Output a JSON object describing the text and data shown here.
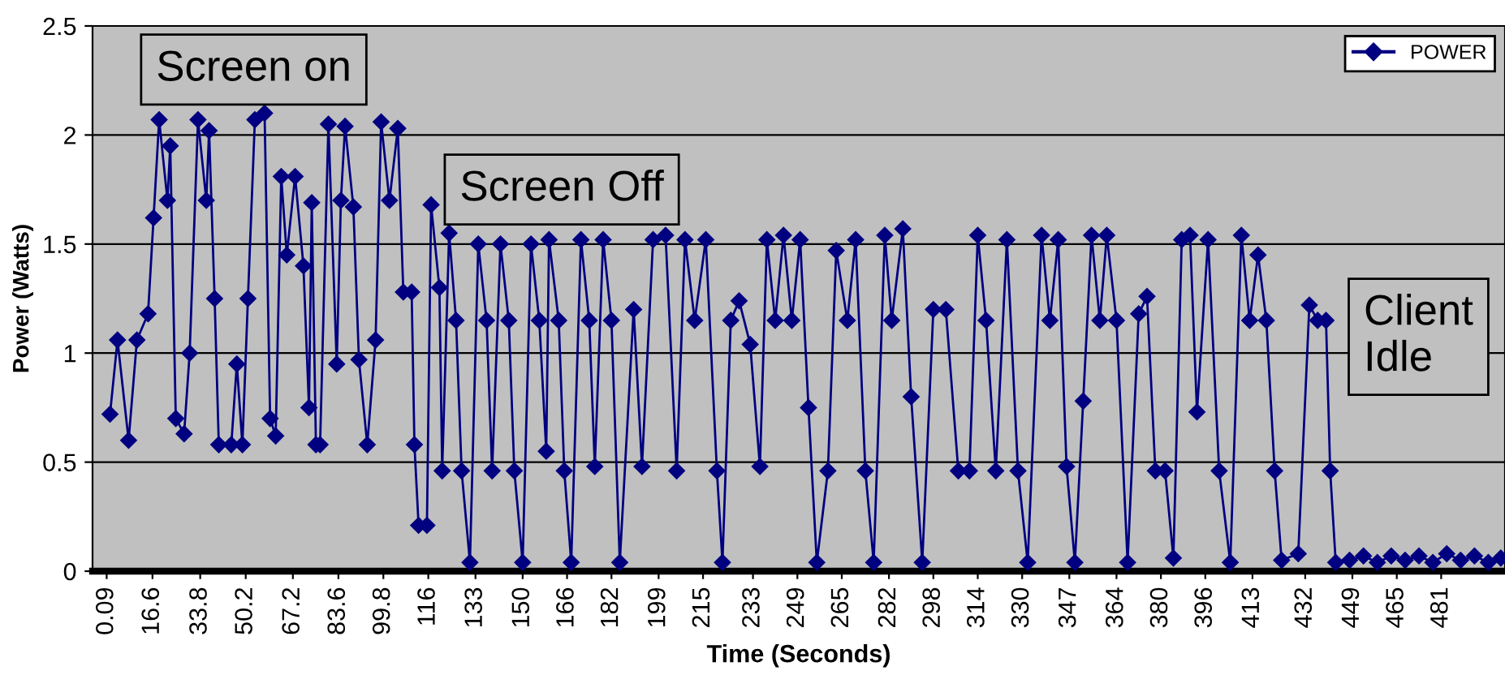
{
  "chart_data": {
    "type": "line",
    "xlabel": "Time (Seconds)",
    "ylabel": "Power (Watts)",
    "annotations": [
      "Screen on",
      "Screen Off",
      "Client\nIdle"
    ],
    "xlim": [
      -5,
      504
    ],
    "xticks": [
      0.09,
      16.6,
      33.8,
      50.2,
      67.2,
      83.6,
      99.8,
      116,
      133,
      150,
      166,
      182,
      199,
      215,
      233,
      249,
      265,
      282,
      298,
      314,
      330,
      347,
      364,
      380,
      396,
      413,
      432,
      449,
      465,
      481
    ],
    "ylim": [
      0,
      2.5
    ],
    "yticks": [
      0,
      0.5,
      1,
      1.5,
      2,
      2.5
    ],
    "grid": "y",
    "legend": "top right",
    "marker": "diamond",
    "line_style": "solid",
    "series": [
      {
        "name": "POWER",
        "color": "#000080",
        "x": [
          1.3,
          4,
          8,
          11,
          15,
          17,
          19,
          22,
          23,
          25,
          28,
          30,
          33,
          36,
          37,
          39,
          40.5,
          45,
          47,
          49,
          51,
          53.5,
          57,
          59,
          61,
          63,
          65,
          68,
          71,
          73,
          74,
          75.5,
          77,
          80,
          83,
          84.5,
          86,
          89,
          91,
          94,
          97,
          99,
          102,
          105,
          107,
          110,
          111,
          112.5,
          115.5,
          117,
          120,
          121,
          123.5,
          126,
          128,
          131,
          134,
          137,
          139,
          142,
          145,
          147,
          150,
          153,
          156,
          158.5,
          159.5,
          163,
          165,
          167.5,
          171,
          174,
          176,
          179,
          182,
          185,
          190,
          193,
          197,
          201.5,
          205.5,
          208.5,
          212,
          216,
          220,
          222,
          225,
          228,
          232,
          235.5,
          238,
          241,
          244,
          247,
          250,
          253,
          256,
          260,
          263,
          267,
          270,
          273.5,
          276.5,
          280.5,
          283,
          287,
          290,
          294,
          298,
          302.5,
          307,
          311,
          314,
          317,
          320.5,
          324.5,
          328.5,
          332,
          337,
          340,
          343,
          346,
          349,
          352,
          355,
          358,
          360.5,
          364,
          368,
          372,
          375,
          378,
          381.5,
          384.5,
          387.5,
          390.5,
          393,
          397,
          401,
          405,
          409,
          412,
          415,
          418,
          421,
          423.5,
          429.5,
          433.5,
          436.5,
          439.5,
          441,
          443,
          448,
          453,
          458,
          463,
          468,
          473,
          478,
          483,
          488,
          493,
          498,
          502.5
        ],
        "values": [
          0.72,
          1.06,
          0.6,
          1.06,
          1.18,
          1.62,
          2.07,
          1.7,
          1.95,
          0.7,
          0.63,
          1.0,
          2.07,
          1.7,
          2.02,
          1.25,
          0.58,
          0.58,
          0.95,
          0.58,
          1.25,
          2.07,
          2.1,
          0.7,
          0.62,
          1.81,
          1.45,
          1.81,
          1.4,
          0.75,
          1.69,
          0.58,
          0.58,
          2.05,
          0.95,
          1.7,
          2.04,
          1.67,
          0.97,
          0.58,
          1.06,
          2.06,
          1.7,
          2.03,
          1.28,
          1.28,
          0.58,
          0.21,
          0.21,
          1.68,
          1.3,
          0.46,
          1.55,
          1.15,
          0.46,
          0.04,
          1.5,
          1.15,
          0.46,
          1.5,
          1.15,
          0.46,
          0.04,
          1.5,
          1.15,
          0.55,
          1.52,
          1.15,
          0.46,
          0.04,
          1.52,
          1.15,
          0.48,
          1.52,
          1.15,
          0.04,
          1.2,
          0.48,
          1.52,
          1.54,
          0.46,
          1.52,
          1.15,
          1.52,
          0.46,
          0.04,
          1.15,
          1.24,
          1.04,
          0.48,
          1.52,
          1.15,
          1.54,
          1.15,
          1.52,
          0.75,
          0.04,
          0.46,
          1.47,
          1.15,
          1.52,
          0.46,
          0.04,
          1.54,
          1.15,
          1.57,
          0.8,
          0.04,
          1.2,
          1.2,
          0.46,
          0.46,
          1.54,
          1.15,
          0.46,
          1.52,
          0.46,
          0.04,
          1.54,
          1.15,
          1.52,
          0.48,
          0.04,
          0.78,
          1.54,
          1.15,
          1.54,
          1.15,
          0.04,
          1.18,
          1.26,
          0.46,
          0.46,
          0.06,
          1.52,
          1.54,
          0.73,
          1.52,
          0.46,
          0.04,
          1.54,
          1.15,
          1.45,
          1.15,
          0.46,
          0.05,
          0.08,
          1.22,
          1.15,
          1.15,
          0.46,
          0.04,
          0.05,
          0.07,
          0.04,
          0.07,
          0.05,
          0.07,
          0.04,
          0.08,
          0.05,
          0.07,
          0.04,
          0.06
        ]
      }
    ]
  }
}
